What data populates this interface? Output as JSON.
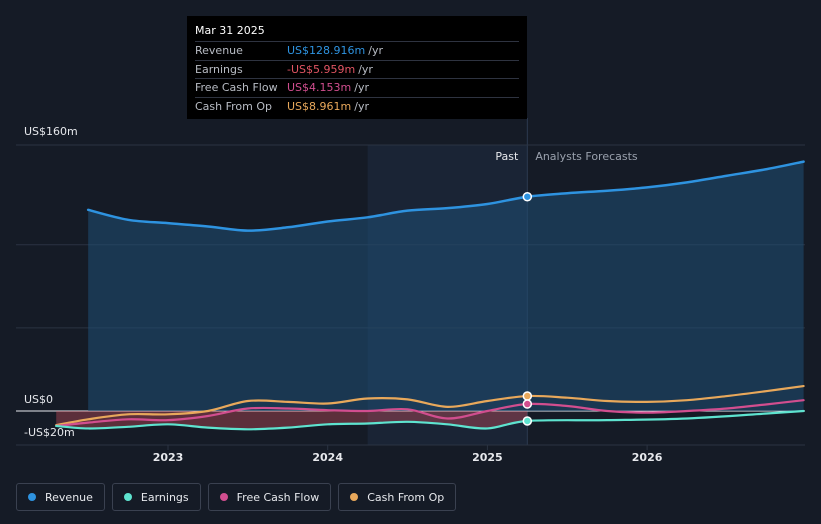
{
  "colors": {
    "revenue": "#2e93e0",
    "earnings": "#5ee3cf",
    "free_cash_flow": "#d14e8f",
    "cash_from_op": "#e8a85b",
    "revenue_negative": "#e25563"
  },
  "tooltip": {
    "date": "Mar 31 2025",
    "rows": [
      {
        "label": "Revenue",
        "value": "US$128.916m",
        "unit": "/yr",
        "color": "#2e93e0"
      },
      {
        "label": "Earnings",
        "value": "-US$5.959m",
        "unit": "/yr",
        "color": "#e25563"
      },
      {
        "label": "Free Cash Flow",
        "value": "US$4.153m",
        "unit": "/yr",
        "color": "#d14e8f"
      },
      {
        "label": "Cash From Op",
        "value": "US$8.961m",
        "unit": "/yr",
        "color": "#e8a85b"
      }
    ]
  },
  "legend": [
    {
      "label": "Revenue",
      "color": "#2e93e0"
    },
    {
      "label": "Earnings",
      "color": "#5ee3cf"
    },
    {
      "label": "Free Cash Flow",
      "color": "#d14e8f"
    },
    {
      "label": "Cash From Op",
      "color": "#e8a85b"
    }
  ],
  "chart_data": {
    "type": "line",
    "title": "",
    "xlabel": "",
    "ylabel": "",
    "unit": "US$ m",
    "ylim": [
      -20,
      160
    ],
    "xlim": [
      2022.3,
      2026.98
    ],
    "y_ticks": [
      {
        "value": 160,
        "label": "US$160m"
      },
      {
        "value": 0,
        "label": "US$0"
      },
      {
        "value": -20,
        "label": "-US$20m"
      }
    ],
    "x_ticks": [
      {
        "value": 2023,
        "label": "2023"
      },
      {
        "value": 2024,
        "label": "2024"
      },
      {
        "value": 2025,
        "label": "2025"
      },
      {
        "value": 2026,
        "label": "2026"
      }
    ],
    "gridlines": [
      160,
      100,
      50,
      0
    ],
    "past_label": "Past",
    "forecast_label": "Analysts Forecasts",
    "past_shade_start": 2024.25,
    "divider_x": 2025.25,
    "series": [
      {
        "name": "Revenue",
        "key": "revenue",
        "past": [
          [
            2022.5,
            121
          ],
          [
            2022.75,
            115
          ],
          [
            2023.0,
            113
          ],
          [
            2023.25,
            111
          ],
          [
            2023.5,
            108.5
          ],
          [
            2023.75,
            110.5
          ],
          [
            2024.0,
            114
          ],
          [
            2024.25,
            116.5
          ],
          [
            2024.5,
            120.5
          ],
          [
            2024.75,
            122
          ],
          [
            2025.0,
            124.5
          ],
          [
            2025.25,
            128.9
          ]
        ],
        "forecast": [
          [
            2025.25,
            128.9
          ],
          [
            2025.5,
            131
          ],
          [
            2025.75,
            132.5
          ],
          [
            2026.0,
            134.5
          ],
          [
            2026.25,
            137.5
          ],
          [
            2026.5,
            141.5
          ],
          [
            2026.75,
            145.5
          ],
          [
            2026.98,
            150
          ]
        ]
      },
      {
        "name": "Earnings",
        "key": "earnings",
        "past": [
          [
            2022.3,
            -9
          ],
          [
            2022.5,
            -10.5
          ],
          [
            2022.75,
            -9.5
          ],
          [
            2023.0,
            -8
          ],
          [
            2023.25,
            -10
          ],
          [
            2023.5,
            -11
          ],
          [
            2023.75,
            -10
          ],
          [
            2024.0,
            -8
          ],
          [
            2024.25,
            -7.5
          ],
          [
            2024.5,
            -6.5
          ],
          [
            2024.75,
            -8
          ],
          [
            2025.0,
            -10.5
          ],
          [
            2025.25,
            -6
          ]
        ],
        "forecast": [
          [
            2025.25,
            -6
          ],
          [
            2025.75,
            -5.5
          ],
          [
            2026.25,
            -4.5
          ],
          [
            2026.75,
            -1.5
          ],
          [
            2026.98,
            0
          ]
        ]
      },
      {
        "name": "Free Cash Flow",
        "key": "free_cash_flow",
        "past": [
          [
            2022.3,
            -9
          ],
          [
            2022.5,
            -7
          ],
          [
            2022.75,
            -5
          ],
          [
            2023.0,
            -5.5
          ],
          [
            2023.25,
            -3
          ],
          [
            2023.5,
            1.5
          ],
          [
            2023.75,
            1.5
          ],
          [
            2024.0,
            0.5
          ],
          [
            2024.25,
            0
          ],
          [
            2024.5,
            1
          ],
          [
            2024.75,
            -4.5
          ],
          [
            2025.0,
            0
          ],
          [
            2025.25,
            4.2
          ]
        ],
        "forecast": [
          [
            2025.25,
            4.2
          ],
          [
            2025.5,
            3
          ],
          [
            2025.75,
            0
          ],
          [
            2026.0,
            -1
          ],
          [
            2026.25,
            0
          ],
          [
            2026.5,
            1.5
          ],
          [
            2026.75,
            4
          ],
          [
            2026.98,
            6.5
          ]
        ]
      },
      {
        "name": "Cash From Op",
        "key": "cash_from_op",
        "past": [
          [
            2022.3,
            -8.5
          ],
          [
            2022.5,
            -5
          ],
          [
            2022.75,
            -2
          ],
          [
            2023.0,
            -2
          ],
          [
            2023.25,
            0
          ],
          [
            2023.5,
            6
          ],
          [
            2023.75,
            5.5
          ],
          [
            2024.0,
            4.5
          ],
          [
            2024.25,
            7.5
          ],
          [
            2024.5,
            7
          ],
          [
            2024.75,
            2.5
          ],
          [
            2025.0,
            6
          ],
          [
            2025.25,
            9
          ]
        ],
        "forecast": [
          [
            2025.25,
            9
          ],
          [
            2025.5,
            8
          ],
          [
            2025.75,
            6
          ],
          [
            2026.0,
            5.5
          ],
          [
            2026.25,
            6.5
          ],
          [
            2026.5,
            9
          ],
          [
            2026.75,
            12
          ],
          [
            2026.98,
            15
          ]
        ]
      }
    ]
  }
}
